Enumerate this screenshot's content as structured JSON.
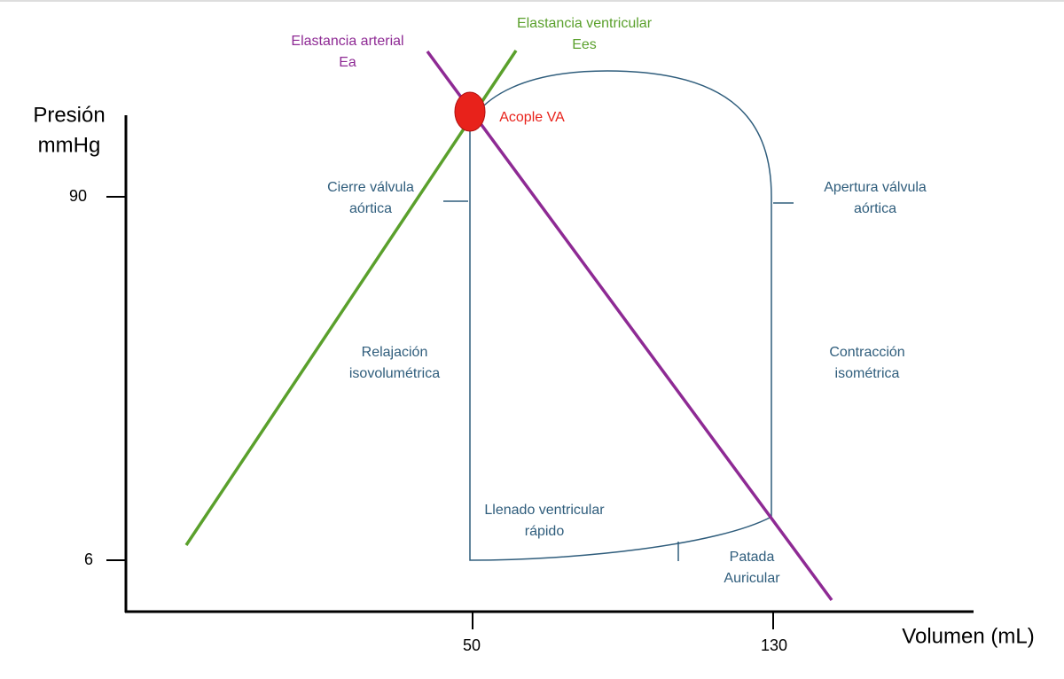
{
  "axes": {
    "y_title": [
      "Presión",
      "mmHg"
    ],
    "x_title": "Volumen (mL)",
    "y_ticks": [
      "90",
      "6"
    ],
    "x_ticks": [
      "50",
      "130"
    ]
  },
  "lines": {
    "arterial": [
      "Elastancia arterial",
      "Ea"
    ],
    "ventricular": [
      "Elastancia ventricular",
      "Ees"
    ]
  },
  "coupling": "Acople VA",
  "phases": {
    "aortic_close": [
      "Cierre válvula",
      "aórtica"
    ],
    "aortic_open": [
      "Apertura válvula",
      "aórtica"
    ],
    "relaxation": [
      "Relajación",
      "isovolumétrica"
    ],
    "contraction": [
      "Contracción",
      "isométrica"
    ],
    "filling": [
      "Llenado ventricular",
      "rápido"
    ],
    "atrial": [
      "Patada",
      "Auricular"
    ]
  }
}
